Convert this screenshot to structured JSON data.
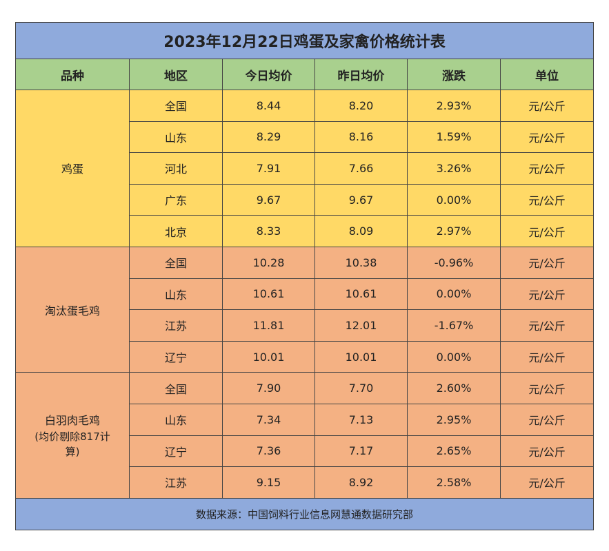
{
  "title": "2023年12月22日鸡蛋及家禽价格统计表",
  "headers": [
    "品种",
    "地区",
    "今日均价",
    "昨日均价",
    "涨跌",
    "单位"
  ],
  "groups": [
    {
      "name": "鸡蛋",
      "rows": [
        [
          "全国",
          "8.44",
          "8.20",
          "2.93%",
          "元/公斤"
        ],
        [
          "山东",
          "8.29",
          "8.16",
          "1.59%",
          "元/公斤"
        ],
        [
          "河北",
          "7.91",
          "7.66",
          "3.26%",
          "元/公斤"
        ],
        [
          "广东",
          "9.67",
          "9.67",
          "0.00%",
          "元/公斤"
        ],
        [
          "北京",
          "8.33",
          "8.09",
          "2.97%",
          "元/公斤"
        ]
      ]
    },
    {
      "name": "淘汰蛋毛鸡",
      "rows": [
        [
          "全国",
          "10.28",
          "10.38",
          "-0.96%",
          "元/公斤"
        ],
        [
          "山东",
          "10.61",
          "10.61",
          "0.00%",
          "元/公斤"
        ],
        [
          "江苏",
          "11.81",
          "12.01",
          "-1.67%",
          "元/公斤"
        ],
        [
          "辽宁",
          "10.01",
          "10.01",
          "0.00%",
          "元/公斤"
        ]
      ]
    },
    {
      "name": "白羽肉毛鸡",
      "note": "(均价剔除817计算)",
      "rows": [
        [
          "全国",
          "7.90",
          "7.70",
          "2.60%",
          "元/公斤"
        ],
        [
          "山东",
          "7.34",
          "7.13",
          "2.95%",
          "元/公斤"
        ],
        [
          "辽宁",
          "7.36",
          "7.17",
          "2.65%",
          "元/公斤"
        ],
        [
          "江苏",
          "9.15",
          "8.92",
          "2.58%",
          "元/公斤"
        ]
      ]
    }
  ],
  "footer": "数据来源：中国饲料行业信息网慧通数据研究部"
}
